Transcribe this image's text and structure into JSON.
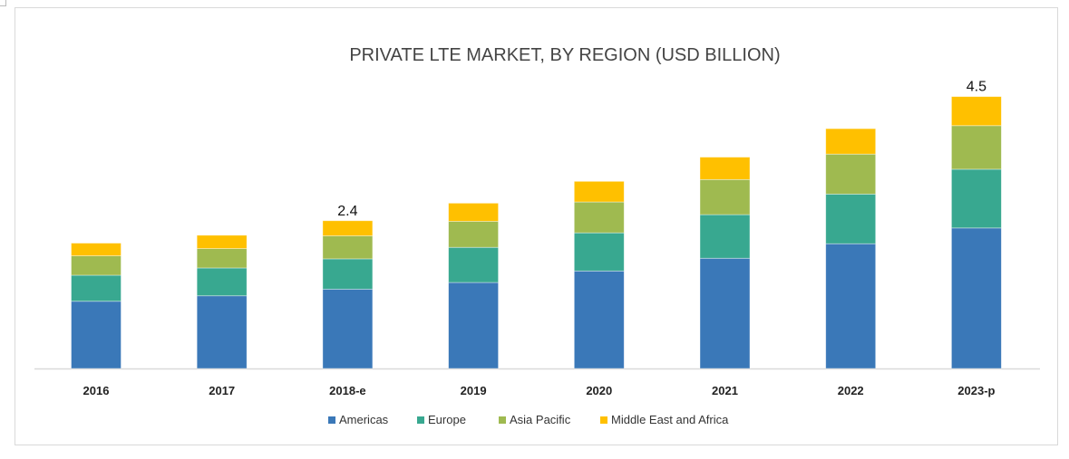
{
  "chart_data": {
    "type": "bar",
    "stacked": true,
    "title": "PRIVATE LTE MARKET, BY REGION (USD BILLION)",
    "xlabel": "",
    "ylabel": "",
    "ylim": [
      0,
      4.5
    ],
    "grid": false,
    "legend_position": "bottom",
    "categories": [
      "2016",
      "2017",
      "2018-e",
      "2019",
      "2020",
      "2021",
      "2022",
      "2023-p"
    ],
    "series": [
      {
        "name": "Americas",
        "color": "#3a78b8",
        "values": [
          1.11,
          1.2,
          1.31,
          1.42,
          1.61,
          1.82,
          2.06,
          2.32
        ]
      },
      {
        "name": "Europe",
        "color": "#38a890",
        "values": [
          0.43,
          0.46,
          0.5,
          0.58,
          0.63,
          0.72,
          0.82,
          0.97
        ]
      },
      {
        "name": "Asia Pacific",
        "color": "#9fba50",
        "values": [
          0.32,
          0.32,
          0.38,
          0.43,
          0.51,
          0.58,
          0.66,
          0.72
        ]
      },
      {
        "name": "Middle East and Africa",
        "color": "#ffc000",
        "values": [
          0.21,
          0.22,
          0.25,
          0.3,
          0.34,
          0.37,
          0.42,
          0.48
        ]
      }
    ],
    "data_labels": [
      {
        "category": "2018-e",
        "text": "2.4"
      },
      {
        "category": "2023-p",
        "text": "4.5"
      }
    ]
  }
}
